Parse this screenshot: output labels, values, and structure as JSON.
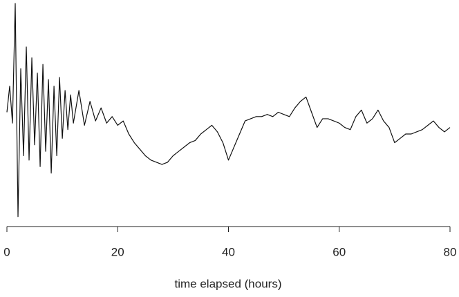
{
  "chart_data": {
    "type": "line",
    "xlabel": "time elapsed (hours)",
    "x": [
      0,
      0.5,
      1,
      1.5,
      2,
      2.5,
      3,
      3.5,
      4,
      4.5,
      5,
      5.5,
      6,
      6.5,
      7,
      7.5,
      8,
      8.5,
      9,
      9.5,
      10,
      10.5,
      11,
      11.5,
      12,
      13,
      14,
      15,
      16,
      17,
      18,
      19,
      20,
      21,
      22,
      23,
      24,
      25,
      26,
      27,
      28,
      29,
      30,
      31,
      32,
      33,
      34,
      35,
      36,
      37,
      38,
      39,
      40,
      41,
      42,
      43,
      44,
      45,
      46,
      47,
      48,
      49,
      50,
      51,
      52,
      53,
      54,
      55,
      56,
      57,
      58,
      59,
      60,
      61,
      62,
      63,
      64,
      65,
      66,
      67,
      68,
      69,
      70,
      71,
      72,
      73,
      74,
      75,
      76,
      77,
      78,
      79,
      80
    ],
    "series": [
      {
        "color": "#111111",
        "values": [
          50,
          62,
          45,
          100,
          2,
          70,
          30,
          80,
          28,
          75,
          35,
          68,
          25,
          72,
          32,
          65,
          22,
          62,
          30,
          66,
          38,
          60,
          42,
          58,
          45,
          60,
          44,
          55,
          46,
          52,
          45,
          48,
          44,
          46,
          40,
          36,
          33,
          30,
          28,
          27,
          26,
          27,
          30,
          32,
          34,
          36,
          37,
          40,
          42,
          44,
          41,
          36,
          28,
          34,
          40,
          46,
          47,
          48,
          48,
          49,
          48,
          50,
          49,
          48,
          52,
          55,
          57,
          50,
          43,
          47,
          47,
          46,
          45,
          43,
          42,
          48,
          51,
          45,
          47,
          51,
          46,
          43,
          36,
          38,
          40,
          40,
          41,
          42,
          44,
          46,
          43,
          41,
          43
        ]
      }
    ],
    "xlim": [
      0,
      80
    ],
    "xticks": [
      0,
      20,
      40,
      60,
      80
    ],
    "ylim": [
      0,
      100
    ]
  }
}
